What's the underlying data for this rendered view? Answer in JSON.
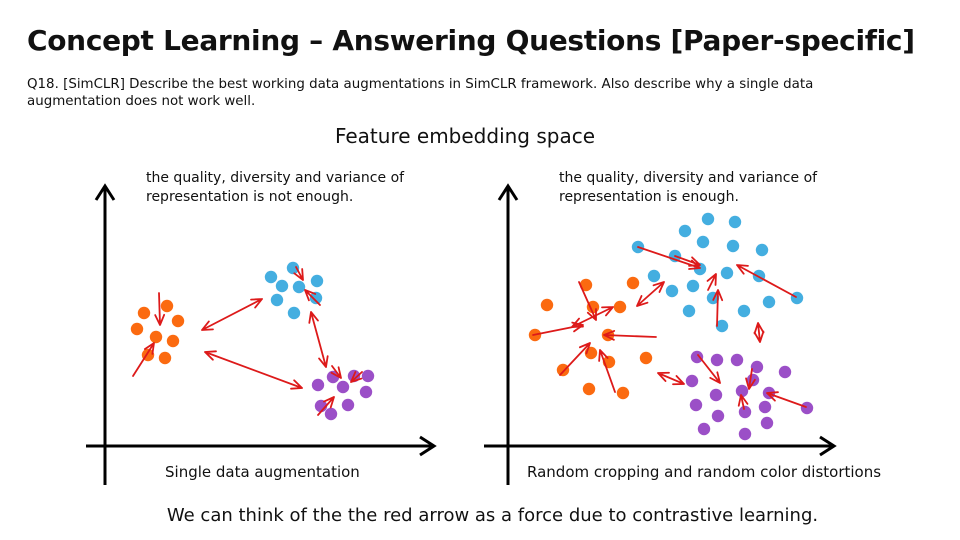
{
  "title": "Concept Learning – Answering Questions [Paper-specific]",
  "question": "Q18. [SimCLR] Describe the best working data augmentations in SimCLR framework. Also describe why a single data augmentation does  not work well.",
  "subtitle": "Feature embedding space",
  "left_panel": {
    "note": "the quality, diversity and variance of representation is not enough.",
    "caption": "Single data augmentation"
  },
  "right_panel": {
    "note": "the quality, diversity and variance of representation is enough.",
    "caption": "Random cropping and random color distortions"
  },
  "footer": "We can think of the the red arrow as a force due to contrastive learning.",
  "colors": {
    "orange": "#fb6a10",
    "blue": "#44aee0",
    "purple": "#9b4fc7",
    "arrow": "#dd1a1a",
    "axis": "#000000"
  }
}
